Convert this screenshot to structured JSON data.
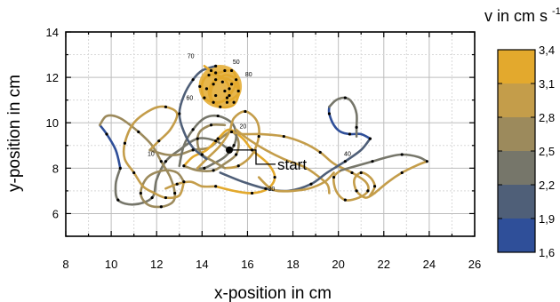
{
  "chart_data": {
    "type": "line",
    "xlabel": "x-position in cm",
    "ylabel": "y-position in cm",
    "xlim": [
      8,
      26
    ],
    "ylim": [
      5,
      14
    ],
    "x_ticks": [
      "8",
      "10",
      "12",
      "14",
      "16",
      "18",
      "20",
      "22",
      "24",
      "26"
    ],
    "y_ticks": [
      "6",
      "8",
      "10",
      "12",
      "14"
    ],
    "grid": true,
    "colorbar": {
      "title": "v in cm s",
      "title_superscript": "-1",
      "ticks": [
        "1,6",
        "1,9",
        "2,2",
        "2,5",
        "2,8",
        "3,1",
        "3,4"
      ],
      "colors": [
        "#2f4f99",
        "#4f5f78",
        "#76766a",
        "#9c8a5c",
        "#c49d4a",
        "#e3a92d"
      ]
    },
    "series": [
      {
        "color_level": 2,
        "points": [
          [
            15.2,
            8.8
          ],
          [
            14.6,
            9.2
          ],
          [
            13.8,
            9.3
          ],
          [
            13.0,
            8.8
          ],
          [
            12.4,
            8.3
          ],
          [
            12.0,
            7.5
          ],
          [
            11.8,
            6.7
          ],
          [
            11.0,
            6.4
          ],
          [
            10.3,
            6.6
          ],
          [
            10.2,
            7.3
          ],
          [
            10.4,
            8.0
          ]
        ]
      },
      {
        "color_level": 0,
        "points": [
          [
            10.4,
            8.0
          ],
          [
            10.2,
            8.8
          ],
          [
            9.8,
            9.5
          ],
          [
            9.5,
            9.9
          ]
        ]
      },
      {
        "color_level": 3,
        "points": [
          [
            9.5,
            9.9
          ],
          [
            9.8,
            10.3
          ],
          [
            10.4,
            10.2
          ],
          [
            11.2,
            9.6
          ],
          [
            11.8,
            9.0
          ],
          [
            12.2,
            8.3
          ],
          [
            12.6,
            7.6
          ],
          [
            12.8,
            6.9
          ],
          [
            12.7,
            6.5
          ],
          [
            12.2,
            6.3
          ],
          [
            11.6,
            6.4
          ],
          [
            11.3,
            6.9
          ],
          [
            11.6,
            7.6
          ],
          [
            12.3,
            7.9
          ],
          [
            12.9,
            7.8
          ],
          [
            13.2,
            7.4
          ]
        ]
      },
      {
        "color_level": 4,
        "points": [
          [
            13.2,
            7.4
          ],
          [
            13.0,
            6.8
          ],
          [
            12.4,
            6.7
          ],
          [
            11.9,
            6.9
          ],
          [
            11.4,
            7.2
          ],
          [
            11.0,
            7.8
          ],
          [
            10.6,
            8.4
          ],
          [
            10.6,
            9.1
          ],
          [
            11.0,
            10.0
          ],
          [
            11.8,
            10.6
          ],
          [
            12.4,
            10.7
          ],
          [
            12.9,
            10.4
          ],
          [
            12.6,
            9.7
          ],
          [
            12.1,
            9.2
          ],
          [
            11.7,
            8.8
          ]
        ]
      },
      {
        "color_level": 3,
        "points": [
          [
            11.7,
            8.8
          ],
          [
            12.4,
            8.6
          ],
          [
            13.0,
            8.6
          ],
          [
            13.6,
            8.8
          ],
          [
            14.3,
            8.9
          ],
          [
            14.8,
            9.3
          ],
          [
            15.3,
            9.6
          ],
          [
            15.6,
            9.2
          ],
          [
            15.5,
            8.6
          ],
          [
            15.0,
            8.2
          ],
          [
            14.5,
            7.9
          ],
          [
            13.8,
            7.9
          ],
          [
            13.2,
            8.1
          ]
        ]
      },
      {
        "color_level": 5,
        "points": [
          [
            13.2,
            8.1
          ],
          [
            13.6,
            8.5
          ],
          [
            14.2,
            8.8
          ],
          [
            14.7,
            9.3
          ],
          [
            15.2,
            9.7
          ],
          [
            15.8,
            9.3
          ],
          [
            16.2,
            8.8
          ],
          [
            16.9,
            8.2
          ],
          [
            17.2,
            7.6
          ],
          [
            16.9,
            7.1
          ],
          [
            16.2,
            6.9
          ],
          [
            15.4,
            7.0
          ],
          [
            14.6,
            7.2
          ]
        ]
      },
      {
        "color_level": 4,
        "points": [
          [
            14.6,
            7.2
          ],
          [
            14.0,
            7.2
          ],
          [
            13.5,
            7.4
          ],
          [
            12.9,
            7.3
          ],
          [
            12.4,
            7.1
          ]
        ]
      },
      {
        "color_level": 2,
        "points": [
          [
            13.0,
            8.1
          ],
          [
            13.2,
            9.0
          ],
          [
            13.6,
            9.7
          ],
          [
            14.1,
            10.2
          ],
          [
            14.7,
            10.3
          ],
          [
            15.3,
            10.0
          ],
          [
            15.5,
            9.5
          ],
          [
            15.4,
            9.0
          ],
          [
            15.0,
            8.5
          ],
          [
            14.5,
            8.2
          ],
          [
            14.1,
            8.0
          ],
          [
            13.8,
            8.0
          ]
        ]
      },
      {
        "color_level": 4,
        "points": [
          [
            13.8,
            8.0
          ],
          [
            14.3,
            8.5
          ],
          [
            14.8,
            9.0
          ],
          [
            15.2,
            9.6
          ],
          [
            15.4,
            10.2
          ],
          [
            15.9,
            10.5
          ],
          [
            16.4,
            10.1
          ],
          [
            16.5,
            9.4
          ],
          [
            16.2,
            8.6
          ],
          [
            15.6,
            8.1
          ],
          [
            15.0,
            8.0
          ]
        ]
      },
      {
        "color_level": 3,
        "points": [
          [
            15.0,
            8.0
          ],
          [
            14.5,
            8.3
          ],
          [
            14.0,
            8.6
          ],
          [
            13.8,
            9.1
          ],
          [
            13.9,
            9.6
          ],
          [
            14.4,
            9.9
          ],
          [
            15.0,
            9.9
          ]
        ]
      },
      {
        "color_level": 1,
        "points": [
          [
            14.2,
            8.4
          ],
          [
            13.6,
            8.9
          ],
          [
            13.2,
            9.6
          ],
          [
            13.0,
            10.4
          ],
          [
            13.2,
            11.2
          ],
          [
            13.6,
            11.9
          ],
          [
            14.0,
            12.3
          ],
          [
            14.6,
            12.5
          ]
        ]
      },
      {
        "color_level": 5,
        "points": [
          [
            14.1,
            12.5
          ],
          [
            14.6,
            12.2
          ],
          [
            15.3,
            12.3
          ],
          [
            15.5,
            11.8
          ],
          [
            15.2,
            11.2
          ],
          [
            14.7,
            10.9
          ],
          [
            14.1,
            11.1
          ],
          [
            14.0,
            11.7
          ],
          [
            14.3,
            12.1
          ],
          [
            14.9,
            12.0
          ],
          [
            15.2,
            11.5
          ],
          [
            15.0,
            11.0
          ],
          [
            14.5,
            10.9
          ],
          [
            14.3,
            11.4
          ],
          [
            14.6,
            11.9
          ],
          [
            15.2,
            11.9
          ],
          [
            15.6,
            11.4
          ],
          [
            15.4,
            10.8
          ],
          [
            14.8,
            10.7
          ],
          [
            14.4,
            11.1
          ],
          [
            14.5,
            11.7
          ],
          [
            15.0,
            12.1
          ],
          [
            15.5,
            11.9
          ],
          [
            15.6,
            11.3
          ],
          [
            15.1,
            10.9
          ]
        ]
      },
      {
        "color_level": 4,
        "points": [
          [
            15.3,
            9.6
          ],
          [
            15.8,
            9.5
          ],
          [
            16.6,
            9.5
          ],
          [
            17.6,
            9.4
          ],
          [
            18.5,
            9.1
          ],
          [
            19.2,
            8.7
          ],
          [
            19.8,
            8.2
          ],
          [
            20.6,
            7.8
          ],
          [
            21.2,
            7.4
          ],
          [
            21.3,
            7.0
          ],
          [
            20.9,
            6.7
          ],
          [
            20.3,
            6.6
          ],
          [
            19.9,
            7.0
          ],
          [
            19.8,
            7.6
          ],
          [
            20.1,
            7.9
          ]
        ]
      },
      {
        "color_level": 4,
        "points": [
          [
            15.5,
            9.7
          ],
          [
            16.0,
            9.3
          ],
          [
            16.8,
            8.8
          ],
          [
            17.6,
            8.4
          ],
          [
            18.4,
            8.1
          ],
          [
            18.9,
            7.8
          ],
          [
            19.5,
            7.3
          ],
          [
            19.6,
            6.9
          ]
        ]
      },
      {
        "color_level": 2,
        "points": [
          [
            20.1,
            7.9
          ],
          [
            20.8,
            8.1
          ],
          [
            21.5,
            8.3
          ],
          [
            22.2,
            8.5
          ],
          [
            22.8,
            8.6
          ],
          [
            23.5,
            8.5
          ],
          [
            23.9,
            8.3
          ]
        ]
      },
      {
        "color_level": 4,
        "points": [
          [
            21.4,
            6.8
          ],
          [
            21.6,
            7.2
          ],
          [
            21.4,
            7.6
          ],
          [
            21.0,
            7.8
          ],
          [
            20.7,
            7.5
          ],
          [
            20.8,
            7.0
          ],
          [
            21.2,
            6.7
          ],
          [
            21.6,
            6.9
          ]
        ]
      },
      {
        "color_level": 4,
        "points": [
          [
            21.6,
            6.9
          ],
          [
            22.2,
            7.4
          ],
          [
            22.8,
            7.8
          ],
          [
            23.4,
            8.1
          ],
          [
            23.9,
            8.3
          ]
        ]
      },
      {
        "color_level": 1,
        "points": [
          [
            14.8,
            7.8
          ],
          [
            15.8,
            7.4
          ],
          [
            16.8,
            7.1
          ],
          [
            17.8,
            7.0
          ],
          [
            18.8,
            7.3
          ],
          [
            19.5,
            7.8
          ],
          [
            20.3,
            8.3
          ],
          [
            21.0,
            8.8
          ],
          [
            21.4,
            9.3
          ]
        ]
      },
      {
        "color_level": 0,
        "points": [
          [
            21.4,
            9.3
          ],
          [
            21.0,
            9.5
          ],
          [
            20.5,
            9.5
          ],
          [
            20.1,
            9.6
          ],
          [
            19.8,
            9.9
          ],
          [
            19.6,
            10.4
          ],
          [
            19.6,
            10.7
          ]
        ]
      },
      {
        "color_level": 2,
        "points": [
          [
            19.6,
            10.7
          ],
          [
            19.9,
            11.0
          ],
          [
            20.3,
            11.1
          ],
          [
            20.6,
            10.9
          ],
          [
            20.8,
            10.4
          ],
          [
            20.8,
            9.8
          ],
          [
            20.8,
            9.4
          ]
        ]
      },
      {
        "color_level": 4,
        "points": [
          [
            16.5,
            7.6
          ],
          [
            16.9,
            7.2
          ],
          [
            17.3,
            7.0
          ],
          [
            18.0,
            7.0
          ],
          [
            18.7,
            7.1
          ],
          [
            19.4,
            7.4
          ],
          [
            19.8,
            7.8
          ]
        ]
      }
    ],
    "markers": [
      [
        15.2,
        8.8
      ],
      [
        14.6,
        9.2
      ],
      [
        13.8,
        9.3
      ],
      [
        12.4,
        8.3
      ],
      [
        11.8,
        6.7
      ],
      [
        10.3,
        6.6
      ],
      [
        10.4,
        8.0
      ],
      [
        9.8,
        9.5
      ],
      [
        11.2,
        9.6
      ],
      [
        12.2,
        8.3
      ],
      [
        12.8,
        6.9
      ],
      [
        12.2,
        6.3
      ],
      [
        11.3,
        6.9
      ],
      [
        13.2,
        7.4
      ],
      [
        12.4,
        6.7
      ],
      [
        11.0,
        7.8
      ],
      [
        10.6,
        9.1
      ],
      [
        12.4,
        10.7
      ],
      [
        12.1,
        9.2
      ],
      [
        13.6,
        8.8
      ],
      [
        15.3,
        9.6
      ],
      [
        15.5,
        8.6
      ],
      [
        14.5,
        7.9
      ],
      [
        13.2,
        8.1
      ],
      [
        14.7,
        9.3
      ],
      [
        16.2,
        8.8
      ],
      [
        17.2,
        7.6
      ],
      [
        16.2,
        6.9
      ],
      [
        14.6,
        7.2
      ],
      [
        12.9,
        7.3
      ],
      [
        13.6,
        9.7
      ],
      [
        14.7,
        10.3
      ],
      [
        15.4,
        9.0
      ],
      [
        14.1,
        8.0
      ],
      [
        15.9,
        10.5
      ],
      [
        16.5,
        9.4
      ],
      [
        15.6,
        8.1
      ],
      [
        14.0,
        8.6
      ],
      [
        14.4,
        9.9
      ],
      [
        13.0,
        10.4
      ],
      [
        13.6,
        11.9
      ],
      [
        14.6,
        12.5
      ],
      [
        14.6,
        12.2
      ],
      [
        15.3,
        12.3
      ],
      [
        15.2,
        11.2
      ],
      [
        14.1,
        11.1
      ],
      [
        14.3,
        12.1
      ],
      [
        15.2,
        11.5
      ],
      [
        14.5,
        10.9
      ],
      [
        14.6,
        11.9
      ],
      [
        15.6,
        11.4
      ],
      [
        14.8,
        10.7
      ],
      [
        14.5,
        11.7
      ],
      [
        15.5,
        11.9
      ],
      [
        15.1,
        10.9
      ],
      [
        17.6,
        9.4
      ],
      [
        19.2,
        8.7
      ],
      [
        20.6,
        7.8
      ],
      [
        21.3,
        7.0
      ],
      [
        20.3,
        6.6
      ],
      [
        19.8,
        7.6
      ],
      [
        21.5,
        8.3
      ],
      [
        22.8,
        8.6
      ],
      [
        23.9,
        8.3
      ],
      [
        21.6,
        7.2
      ],
      [
        21.0,
        7.8
      ],
      [
        20.8,
        7.0
      ],
      [
        22.8,
        7.8
      ],
      [
        16.8,
        7.1
      ],
      [
        18.8,
        7.3
      ],
      [
        20.3,
        8.3
      ],
      [
        21.4,
        9.3
      ],
      [
        20.5,
        9.5
      ],
      [
        19.6,
        10.4
      ],
      [
        20.3,
        11.1
      ],
      [
        20.8,
        9.8
      ],
      [
        14.9,
        11.8
      ],
      [
        14.2,
        11.5
      ],
      [
        15.0,
        11.4
      ],
      [
        14.6,
        11.2
      ],
      [
        15.3,
        11.7
      ],
      [
        14.4,
        12.3
      ],
      [
        15.4,
        10.9
      ],
      [
        13.9,
        11.6
      ],
      [
        15.0,
        12.3
      ],
      [
        15.1,
        11.1
      ]
    ],
    "shaded_region": {
      "center": [
        14.8,
        11.6
      ],
      "radius": [
        0.95,
        0.95
      ]
    },
    "annotations": [
      {
        "text": "10",
        "x": 11.6,
        "y": 8.55
      },
      {
        "text": "20",
        "x": 15.65,
        "y": 9.75
      },
      {
        "text": "30",
        "x": 16.9,
        "y": 7.0
      },
      {
        "text": "40",
        "x": 20.25,
        "y": 8.55
      },
      {
        "text": "50",
        "x": 15.35,
        "y": 12.6
      },
      {
        "text": "60",
        "x": 13.3,
        "y": 11.0
      },
      {
        "text": "70",
        "x": 13.35,
        "y": 12.85
      },
      {
        "text": "80",
        "x": 15.9,
        "y": 12.05
      }
    ],
    "start": {
      "label": "start",
      "x": 15.2,
      "y": 8.8
    }
  }
}
